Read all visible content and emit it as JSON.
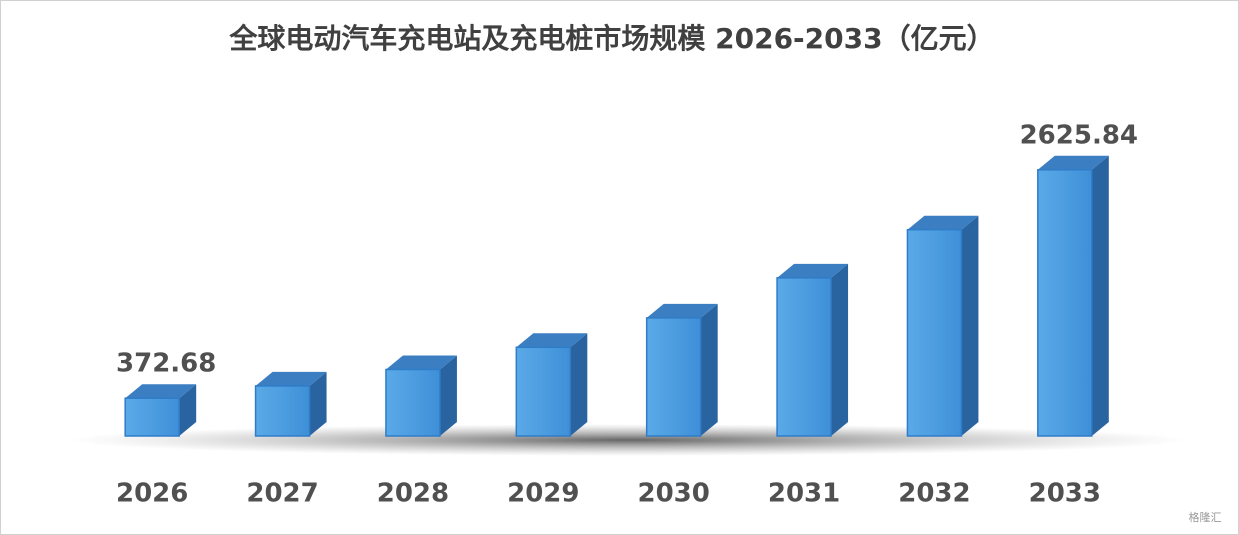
{
  "chart_data": {
    "type": "bar3d",
    "title": "全球电动汽车充电站及充电桩市场规模 2026-2033（亿元）",
    "categories": [
      "2026",
      "2027",
      "2028",
      "2029",
      "2030",
      "2031",
      "2032",
      "2033"
    ],
    "values": [
      372.68,
      494,
      656,
      875,
      1165,
      1560,
      2035,
      2625.84
    ],
    "value_labels": [
      "372.68",
      null,
      null,
      null,
      null,
      null,
      null,
      "2625.84"
    ],
    "color": "#4a9ae0",
    "ylim": [
      0,
      2900
    ]
  },
  "watermark": "格隆汇"
}
